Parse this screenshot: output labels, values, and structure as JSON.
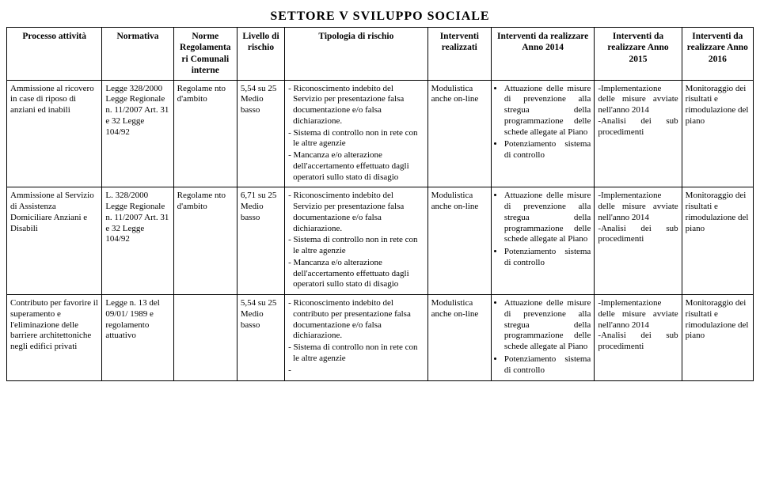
{
  "title": "SETTORE V  SVILUPPO  SOCIALE",
  "headers": {
    "processo": "Processo attività",
    "normativa": "Normativa",
    "norme": "Norme Regolamenta ri Comunali interne",
    "livello": "Livello di rischio",
    "tipologia": "Tipologia di rischio",
    "realizzati": "Interventi realizzati",
    "anno2014": "Interventi da realizzare Anno 2014",
    "anno2015": "Interventi da realizzare Anno 2015",
    "anno2016": "Interventi da realizzare Anno 2016"
  },
  "rows": [
    {
      "processo": "Ammissione al ricovero in case di riposo di anziani ed inabili",
      "normativa": "Legge 328/2000 Legge Regionale n. 11/2007 Art. 31 e 32 Legge 104/92",
      "norme": "Regolame nto d'ambito",
      "livello": "5,54 su 25 Medio basso",
      "tipologia": [
        "- Riconoscimento indebito del Servizio per presentazione falsa documentazione e/o falsa dichiarazione.",
        "- Sistema di controllo non in rete con le altre agenzie",
        "- Mancanza e/o alterazione dell'accertamento effettuato dagli operatori sullo stato di disagio"
      ],
      "realizzati": "Modulistica anche on-line",
      "anno2014": [
        "Attuazione delle misure di prevenzione alla stregua della programmazione delle schede allegate al Piano",
        "Potenziamento sistema di controllo"
      ],
      "anno2015": "-Implementazione delle misure avviate nell'anno 2014\n-Analisi dei sub procedimenti",
      "anno2016": "Monitoraggio dei risultati e rimodulazione del piano"
    },
    {
      "processo": "Ammissione al Servizio di Assistenza Domiciliare Anziani e Disabili",
      "normativa": "L. 328/2000 Legge Regionale n. 11/2007 Art. 31 e 32 Legge 104/92",
      "norme": "Regolame nto d'ambito",
      "livello": "6,71 su 25 Medio basso",
      "tipologia": [
        "- Riconoscimento indebito del Servizio per presentazione falsa documentazione e/o falsa dichiarazione.",
        "- Sistema di controllo non in rete con le altre agenzie",
        "- Mancanza e/o alterazione dell'accertamento effettuato dagli operatori sullo stato di disagio"
      ],
      "realizzati": "Modulistica anche on-line",
      "anno2014": [
        "Attuazione delle misure di prevenzione alla stregua della programmazione delle schede allegate al Piano",
        "Potenziamento sistema di controllo"
      ],
      "anno2015": "-Implementazione delle misure avviate nell'anno 2014\n-Analisi dei sub procedimenti",
      "anno2016": "Monitoraggio dei risultati e rimodulazione del piano"
    },
    {
      "processo": "Contributo per favorire il superamento e l'eliminazione delle barriere architettoniche negli edifici privati",
      "normativa": "Legge n. 13 del 09/01/ 1989 e regolamento attuativo",
      "norme": "",
      "livello": "5,54 su 25 Medio basso",
      "tipologia": [
        "- Riconoscimento indebito del contributo per presentazione falsa documentazione e/o falsa dichiarazione.",
        "- Sistema di controllo non in rete con le altre agenzie",
        "-"
      ],
      "realizzati": "Modulistica anche on-line",
      "anno2014": [
        "Attuazione delle misure di prevenzione alla stregua della programmazione delle schede allegate al Piano",
        "Potenziamento sistema di controllo"
      ],
      "anno2015": "-Implementazione delle misure avviate nell'anno 2014\n-Analisi dei sub procedimenti",
      "anno2016": "Monitoraggio dei risultati e rimodulazione del piano"
    }
  ]
}
